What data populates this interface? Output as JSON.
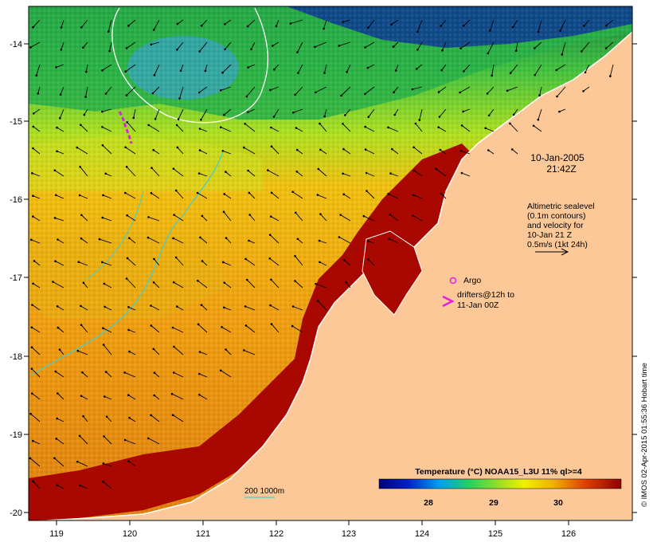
{
  "map": {
    "date_line1": "10-Jan-2005",
    "date_line2": "21:42Z",
    "info_lines": [
      "Altimetric sealevel",
      "(0.1m contours)",
      "and velocity for",
      "10-Jan 21 Z",
      "0.5m/s (1kt 24h)"
    ],
    "argo_label": "Argo",
    "drifters_line1": "drifters@12h to",
    "drifters_line2": "11-Jan 00Z",
    "depth_label": "200  1000m",
    "colorbar_title": "Temperature (°C) NOAA15_L3U 11% ql>=4",
    "colorbar_ticks": [
      "28",
      "29",
      "30"
    ],
    "credit": "© IMOS 02-Apr-2015 01:55:36 Hobart time",
    "x_ticks": [
      "119",
      "120",
      "121",
      "122",
      "123",
      "124",
      "125",
      "126"
    ],
    "y_ticks": [
      "-14",
      "-15",
      "-16",
      "-17",
      "-18",
      "-19",
      "-20"
    ]
  },
  "colors": {
    "land": "#fcc898",
    "warm": "#a80800",
    "mid": "#f0a010",
    "cool": "#30c030",
    "cold": "#001890",
    "argo": "#e020e0",
    "depth_contour": "#40d0d0"
  }
}
